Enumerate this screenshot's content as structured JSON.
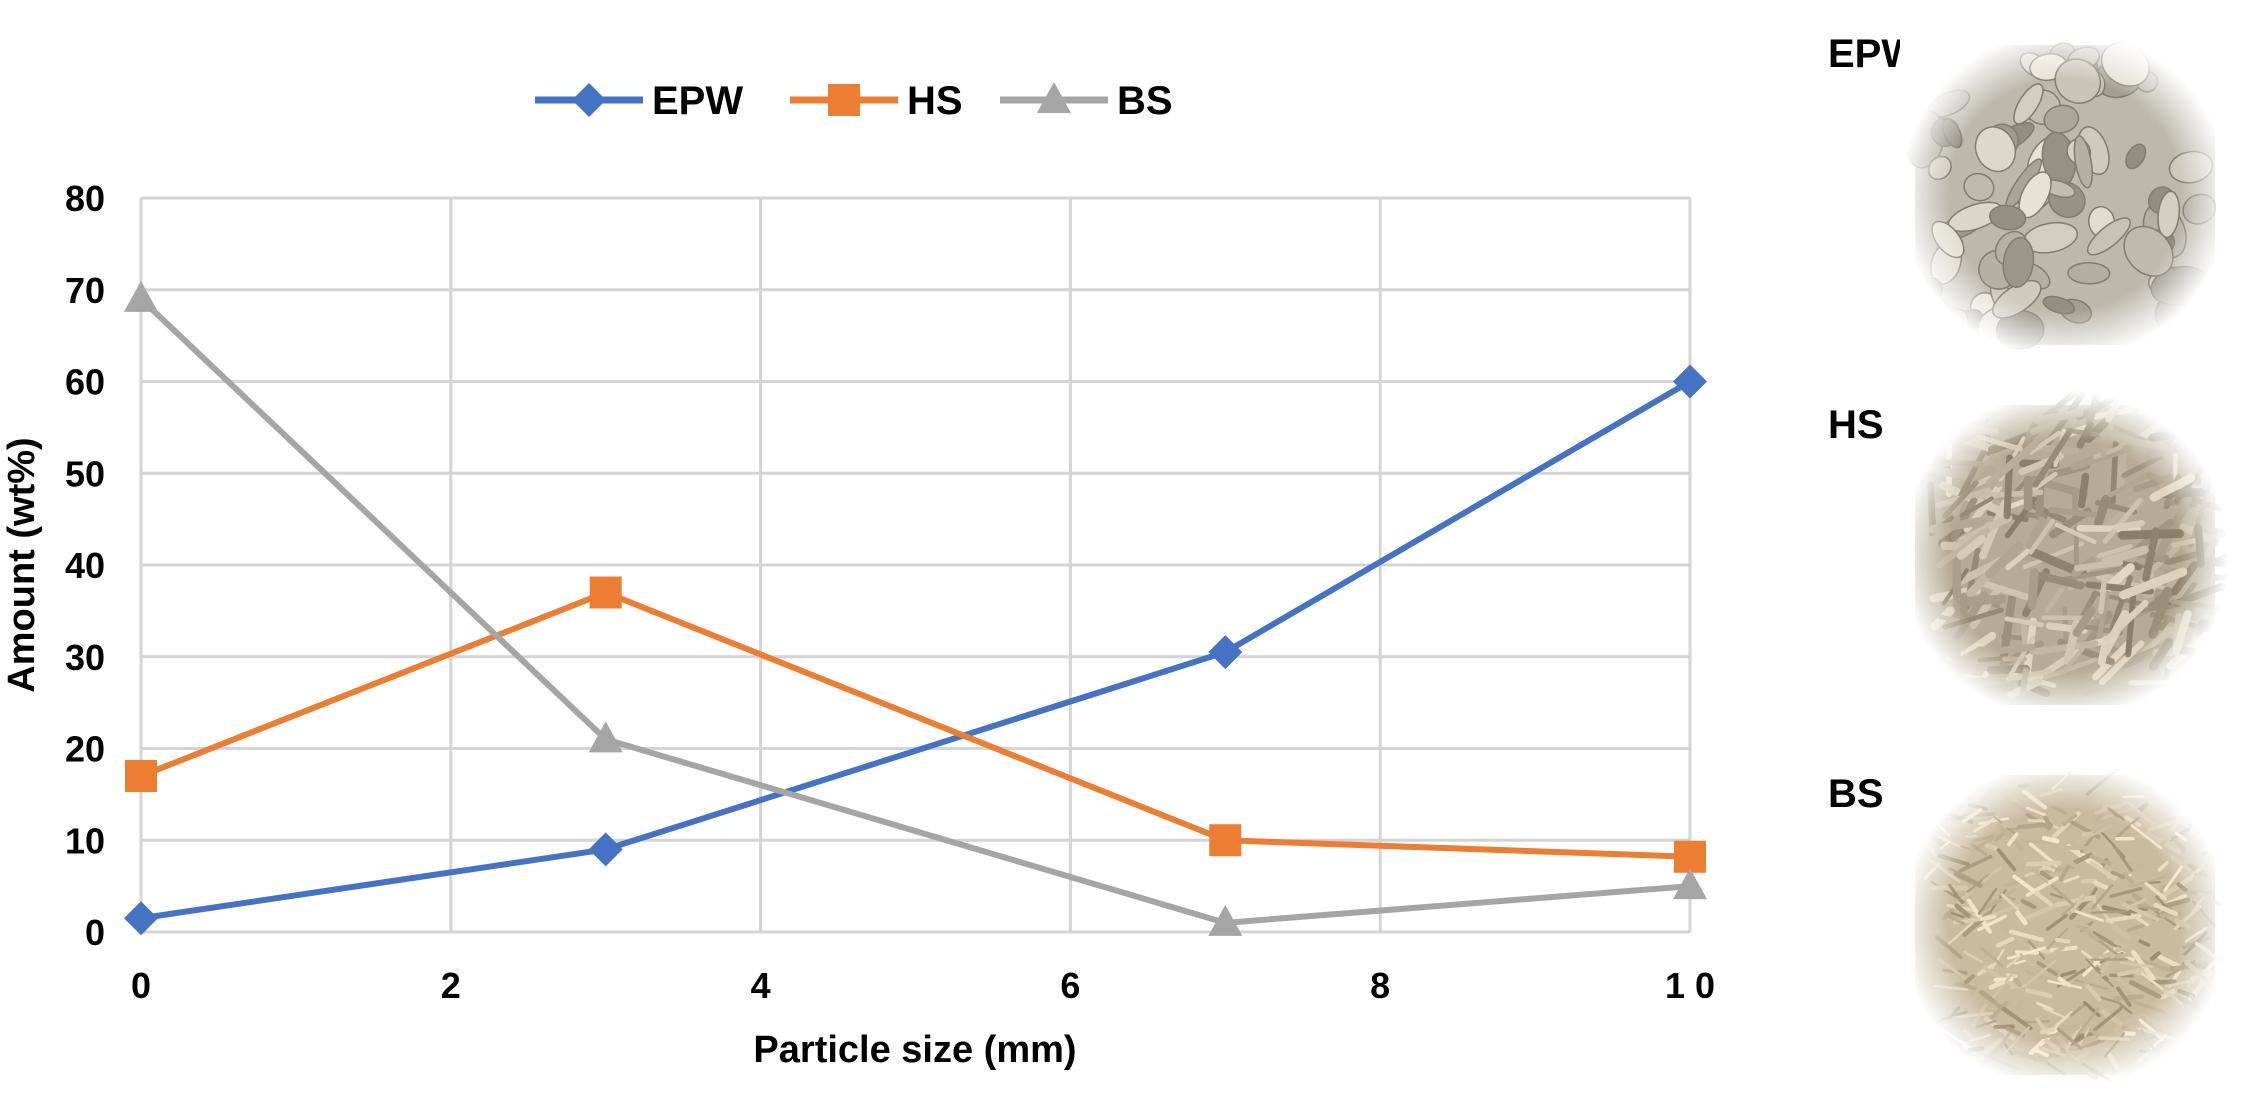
{
  "chart_data": {
    "type": "line",
    "title": "",
    "xlabel": "Particle size (mm)",
    "ylabel": "Amount  (wt%)",
    "xlim": [
      0,
      10
    ],
    "ylim": [
      0,
      80
    ],
    "xticks": [
      "0",
      "2",
      "4",
      "6",
      "8",
      "1 0"
    ],
    "xtick_values": [
      0,
      2,
      4,
      6,
      8,
      10
    ],
    "yticks": [
      "0",
      "10",
      "20",
      "30",
      "40",
      "50",
      "60",
      "70",
      "80"
    ],
    "ytick_values": [
      0,
      10,
      20,
      30,
      40,
      50,
      60,
      70,
      80
    ],
    "grid": true,
    "legend_position": "top",
    "x": [
      0,
      3,
      7,
      10
    ],
    "series": [
      {
        "name": "EPW",
        "values": [
          1.5,
          9,
          30.5,
          60
        ],
        "color": "#4472C4",
        "marker": "diamond"
      },
      {
        "name": "HS",
        "values": [
          17,
          37,
          10,
          8.2
        ],
        "color": "#ED7D31",
        "marker": "square"
      },
      {
        "name": "BS",
        "values": [
          69,
          21,
          1,
          5
        ],
        "color": "#A5A5A5",
        "marker": "triangle"
      }
    ]
  },
  "samples": [
    {
      "label": "EPW",
      "color": "#bdb8ac",
      "pattern": "flakes"
    },
    {
      "label": "HS",
      "color": "#b6ab94",
      "pattern": "shreds"
    },
    {
      "label": "BS",
      "color": "#c9bba0",
      "pattern": "fibers"
    }
  ]
}
